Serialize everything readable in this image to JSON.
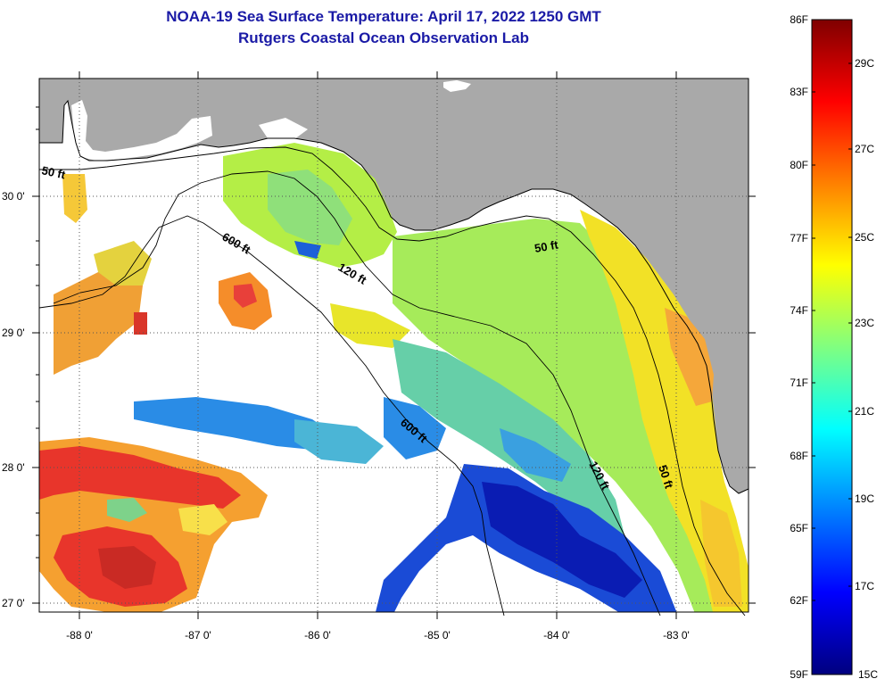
{
  "header": {
    "title": "NOAA-19 Sea Surface Temperature:  April 17, 2022 1250 GMT",
    "subtitle": "Rutgers Coastal Ocean Observation Lab"
  },
  "map": {
    "region": "Northeastern Gulf of Mexico / Florida West Coast",
    "land_color": "#a9a9a9",
    "nodata_color": "#ffffff",
    "lon_labels": [
      "-88 0'",
      "-87 0'",
      "-86 0'",
      "-85 0'",
      "-84 0'",
      "-83 0'"
    ],
    "lat_labels": [
      "30 0'",
      "29 0'",
      "28 0'",
      "27 0'"
    ],
    "contours": {
      "c50_west": "50 ft",
      "c50_east": "50 ft",
      "c50_south": "50 ft",
      "c120_north": "120 ft",
      "c120_south": "120 ft",
      "c600_north": "600 ft",
      "c600_south": "600 ft"
    }
  },
  "colorbar": {
    "f_labels": [
      "86F",
      "83F",
      "80F",
      "77F",
      "74F",
      "71F",
      "68F",
      "65F",
      "62F",
      "59F"
    ],
    "c_labels": [
      "29C",
      "27C",
      "25C",
      "23C",
      "21C",
      "19C",
      "17C",
      "15C"
    ],
    "stops": [
      "#00007f",
      "#0000ff",
      "#0080ff",
      "#00ffff",
      "#80ff80",
      "#ffff00",
      "#ff8000",
      "#ff0000",
      "#7f0000"
    ]
  }
}
